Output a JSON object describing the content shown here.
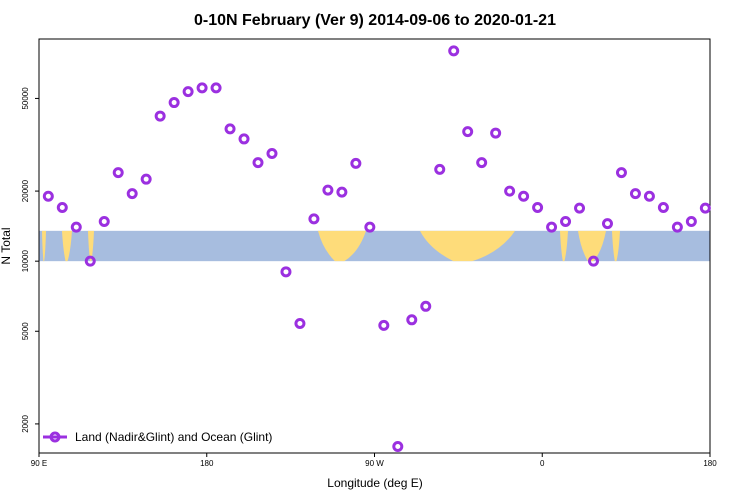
{
  "chart_data": {
    "type": "scatter",
    "title": "0-10N February (Ver 9)   2014-09-06 to 2020-01-21",
    "xlabel": "Longitude (deg E)",
    "ylabel": "N Total",
    "xlim": [
      90,
      450
    ],
    "ylim": [
      1500,
      90000
    ],
    "y_scale": "log",
    "x_ticks": [
      {
        "value": 90,
        "label": "90 E"
      },
      {
        "value": 180,
        "label": "180"
      },
      {
        "value": 270,
        "label": "90 W"
      },
      {
        "value": 360,
        "label": "0"
      },
      {
        "value": 450,
        "label": "180"
      }
    ],
    "y_ticks": [
      {
        "value": 2000,
        "label": "2000"
      },
      {
        "value": 5000,
        "label": "5000"
      },
      {
        "value": 10000,
        "label": "10000"
      },
      {
        "value": 20000,
        "label": "20000"
      },
      {
        "value": 50000,
        "label": "50000"
      }
    ],
    "legend": {
      "position": "bottom-left",
      "entries": [
        {
          "label": "Land (Nadir&Glint) and Ocean (Glint)",
          "color": "#9b30e0"
        }
      ]
    },
    "series": [
      {
        "name": "Land (Nadir&Glint) and Ocean (Glint)",
        "color": "#9b30e0",
        "x": [
          95,
          102.5,
          110,
          117.5,
          125,
          132.5,
          140,
          147.5,
          155,
          162.5,
          170,
          177.5,
          185,
          192.5,
          200,
          207.5,
          215,
          222.5,
          230,
          237.5,
          245,
          252.5,
          260,
          267.5,
          275,
          282.5,
          290,
          297.5,
          305,
          312.5,
          320,
          327.5,
          335,
          342.5,
          350,
          357.5,
          365,
          372.5,
          380,
          387.5,
          395,
          402.5,
          410,
          417.5,
          425,
          432.5,
          440,
          447.5
        ],
        "y": [
          19000,
          17000,
          14000,
          10000,
          14800,
          24000,
          19500,
          22500,
          42000,
          48000,
          53500,
          55500,
          55500,
          37000,
          33500,
          26500,
          29000,
          9000,
          5400,
          15200,
          20200,
          19800,
          26300,
          14000,
          5300,
          1600,
          5600,
          6400,
          24800,
          80000,
          36000,
          26500,
          35500,
          20000,
          19000,
          17000,
          14000,
          14800,
          16900,
          10000,
          14500,
          24000,
          19500,
          19000,
          17000,
          14000,
          14800,
          16900
        ]
      }
    ],
    "background_band": {
      "y_range": [
        10000,
        13500
      ],
      "ocean_color": "#a7bddf",
      "land_color": "#fedc7a"
    }
  }
}
